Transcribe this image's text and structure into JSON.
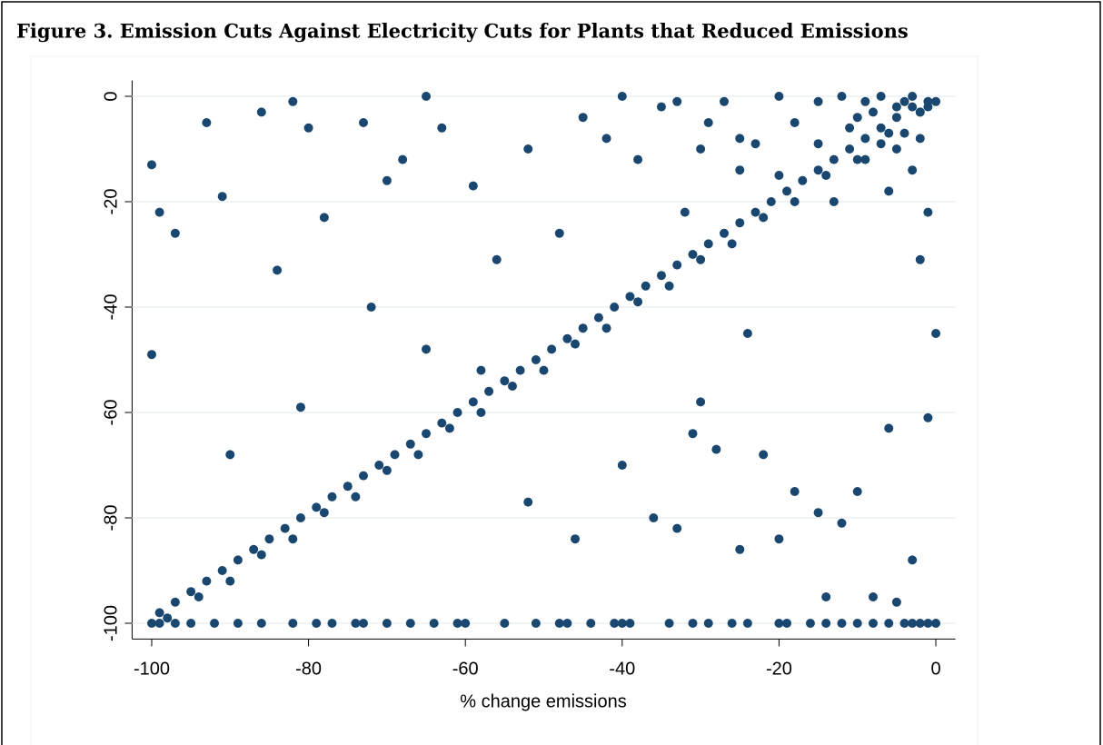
{
  "chart_data": {
    "type": "scatter",
    "title": "Figure 3. Emission Cuts Against Electricity Cuts for Plants that Reduced Emissions",
    "x_label": "% change emissions",
    "color": "#1a476f",
    "xlim": [
      -102.5,
      2.5
    ],
    "ylim": [
      -103,
      3
    ],
    "xticks": [
      -100,
      -80,
      -60,
      -40,
      -20,
      0
    ],
    "yticks": [
      0,
      -20,
      -40,
      -60,
      -80,
      -100
    ],
    "grid": true,
    "x": [
      -99,
      -97,
      -95,
      -93,
      -91,
      -89,
      -87,
      -85,
      -83,
      -81,
      -79,
      -77,
      -75,
      -73,
      -71,
      -69,
      -67,
      -65,
      -63,
      -61,
      -59,
      -57,
      -55,
      -53,
      -51,
      -49,
      -47,
      -45,
      -43,
      -41,
      -39,
      -37,
      -35,
      -33,
      -31,
      -29,
      -27,
      -25,
      -23,
      -21,
      -19,
      -17,
      -15,
      -13,
      -11,
      -9,
      -7,
      -5,
      -3,
      -1,
      -98,
      -94,
      -90,
      -86,
      -82,
      -78,
      -74,
      -70,
      -66,
      -62,
      -58,
      -54,
      -50,
      -46,
      -42,
      -38,
      -34,
      -30,
      -26,
      -22,
      -18,
      -14,
      -10,
      -6,
      -2,
      -100,
      -99,
      -97,
      -95,
      -92,
      -89,
      -86,
      -82,
      -79,
      -77,
      -74,
      -73,
      -70,
      -67,
      -64,
      -61,
      -60,
      -55,
      -51,
      -48,
      -47,
      -44,
      -41,
      -40,
      -39,
      -34,
      -31,
      -29,
      -26,
      -24,
      -20,
      -19,
      -16,
      -14,
      -12,
      -10,
      -8,
      -6,
      -4,
      -3,
      -2,
      -1,
      0,
      -82,
      -65,
      -40,
      -33,
      -27,
      -20,
      -15,
      -12,
      -9,
      -7,
      -5,
      -4,
      -3,
      -2,
      -1,
      0,
      -100,
      -99,
      -97,
      -93,
      -91,
      -86,
      -84,
      -80,
      -78,
      -73,
      -70,
      -68,
      -63,
      -59,
      -56,
      -52,
      -48,
      -45,
      -42,
      -38,
      -35,
      -32,
      -29,
      -25,
      -23,
      -100,
      -90,
      -81,
      -72,
      -65,
      -58,
      -52,
      -46,
      -40,
      -36,
      -33,
      -30,
      -28,
      -25,
      -22,
      -20,
      -18,
      -15,
      -12,
      -10,
      -8,
      -6,
      -5,
      -3,
      -2,
      -1,
      0,
      -14,
      -24,
      -31,
      -30,
      -25,
      -20,
      -18,
      -15,
      -13,
      -11,
      -9,
      -8,
      -6,
      -5,
      -4,
      -3,
      -2,
      -1,
      -10,
      -7
    ],
    "y": [
      -98,
      -96,
      -94,
      -92,
      -90,
      -88,
      -86,
      -84,
      -82,
      -80,
      -78,
      -76,
      -74,
      -72,
      -70,
      -68,
      -66,
      -64,
      -62,
      -60,
      -58,
      -56,
      -54,
      -52,
      -50,
      -48,
      -46,
      -44,
      -42,
      -40,
      -38,
      -36,
      -34,
      -32,
      -30,
      -28,
      -26,
      -24,
      -22,
      -20,
      -18,
      -16,
      -14,
      -12,
      -10,
      -8,
      -6,
      -4,
      -2,
      -1,
      -99,
      -95,
      -92,
      -87,
      -84,
      -79,
      -76,
      -71,
      -68,
      -63,
      -60,
      -55,
      -52,
      -47,
      -44,
      -39,
      -36,
      -31,
      -28,
      -23,
      -20,
      -15,
      -12,
      -7,
      -3,
      -100,
      -100,
      -100,
      -100,
      -100,
      -100,
      -100,
      -100,
      -100,
      -100,
      -100,
      -100,
      -100,
      -100,
      -100,
      -100,
      -100,
      -100,
      -100,
      -100,
      -100,
      -100,
      -100,
      -100,
      -100,
      -100,
      -100,
      -100,
      -100,
      -100,
      -100,
      -100,
      -100,
      -100,
      -100,
      -100,
      -100,
      -100,
      -100,
      -100,
      -100,
      -100,
      -100,
      -1,
      0,
      0,
      -1,
      -1,
      0,
      -1,
      0,
      -1,
      0,
      -2,
      -1,
      0,
      -3,
      -2,
      -1,
      -13,
      -22,
      -26,
      -5,
      -19,
      -3,
      -33,
      -6,
      -23,
      -5,
      -16,
      -12,
      -6,
      -17,
      -31,
      -10,
      -26,
      -4,
      -8,
      -12,
      -2,
      -22,
      -5,
      -14,
      -9,
      -49,
      -68,
      -59,
      -40,
      -48,
      -52,
      -77,
      -84,
      -70,
      -80,
      -82,
      -58,
      -67,
      -86,
      -68,
      -84,
      -75,
      -79,
      -81,
      -75,
      -95,
      -63,
      -96,
      -88,
      -31,
      -61,
      -45,
      -95,
      -45,
      -64,
      -10,
      -8,
      -15,
      -5,
      -9,
      -20,
      -6,
      -12,
      -3,
      -18,
      -10,
      -7,
      -14,
      -8,
      -22,
      -4,
      -9
    ]
  }
}
